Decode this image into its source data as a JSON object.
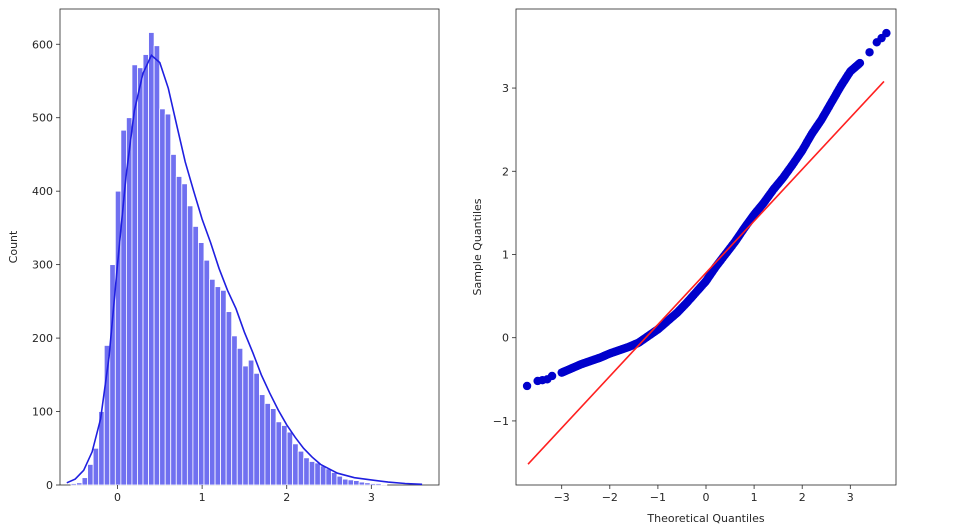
{
  "chart_data": [
    {
      "type": "bar",
      "title": "",
      "xlabel": "",
      "ylabel": "Count",
      "xlim": [
        -0.68,
        3.8
      ],
      "ylim": [
        0,
        648
      ],
      "xticks": [
        0,
        1,
        2,
        3
      ],
      "yticks": [
        0,
        100,
        200,
        300,
        400,
        500,
        600
      ],
      "bin_start": -0.55,
      "bin_width": 0.0655,
      "counts": [
        2,
        3,
        10,
        28,
        50,
        100,
        190,
        300,
        400,
        483,
        500,
        572,
        568,
        586,
        616,
        598,
        512,
        505,
        450,
        420,
        410,
        380,
        352,
        330,
        306,
        280,
        270,
        265,
        236,
        203,
        186,
        162,
        170,
        152,
        123,
        111,
        104,
        86,
        81,
        72,
        56,
        46,
        37,
        32,
        30,
        26,
        22,
        17,
        12,
        8,
        7,
        6,
        4,
        3,
        2,
        2,
        1
      ],
      "bar_color": "#7070f0",
      "kde": {
        "x": [
          -0.6,
          -0.5,
          -0.4,
          -0.3,
          -0.2,
          -0.1,
          0.0,
          0.1,
          0.2,
          0.3,
          0.4,
          0.5,
          0.6,
          0.7,
          0.8,
          0.9,
          1.0,
          1.1,
          1.2,
          1.3,
          1.4,
          1.5,
          1.6,
          1.7,
          1.8,
          1.9,
          2.0,
          2.1,
          2.2,
          2.3,
          2.4,
          2.5,
          2.6,
          2.8,
          3.0,
          3.2,
          3.4,
          3.6
        ],
        "y": [
          3,
          8,
          20,
          45,
          90,
          175,
          300,
          420,
          510,
          560,
          585,
          575,
          540,
          490,
          440,
          400,
          362,
          330,
          295,
          265,
          240,
          208,
          180,
          150,
          125,
          102,
          82,
          65,
          50,
          38,
          28,
          22,
          16,
          10,
          7,
          4,
          2,
          1
        ],
        "color": "#1f1fe0"
      }
    },
    {
      "type": "scatter",
      "title": "",
      "xlabel": "Theoretical Quantiles",
      "ylabel": "Sample Quantiles",
      "xlim": [
        -3.95,
        3.95
      ],
      "ylim": [
        -1.77,
        3.95
      ],
      "xticks": [
        -3,
        -2,
        -1,
        0,
        1,
        2,
        3
      ],
      "xtick_labels": [
        "−3",
        "−2",
        "−1",
        "0",
        "1",
        "2",
        "3"
      ],
      "yticks": [
        -1,
        0,
        1,
        2,
        3
      ],
      "ytick_labels": [
        "−1",
        "0",
        "1",
        "2",
        "3"
      ],
      "point_color": "#0000cc",
      "line_color": "#ff2020",
      "reference_line": {
        "x": [
          -3.7,
          3.7
        ],
        "y": [
          -1.52,
          3.08
        ]
      },
      "points": {
        "x": [
          -3.72,
          -3.5,
          -3.4,
          -3.3,
          -3.2,
          -3.0,
          -2.8,
          -2.6,
          -2.4,
          -2.2,
          -2.0,
          -1.8,
          -1.6,
          -1.4,
          -1.2,
          -1.0,
          -0.8,
          -0.6,
          -0.4,
          -0.2,
          0.0,
          0.2,
          0.4,
          0.6,
          0.8,
          1.0,
          1.2,
          1.4,
          1.6,
          1.8,
          2.0,
          2.2,
          2.4,
          2.6,
          2.8,
          3.0,
          3.2,
          3.4,
          3.55,
          3.65,
          3.75
        ],
        "y": [
          -0.58,
          -0.52,
          -0.51,
          -0.5,
          -0.46,
          -0.42,
          -0.37,
          -0.32,
          -0.28,
          -0.24,
          -0.19,
          -0.15,
          -0.11,
          -0.06,
          0.02,
          0.1,
          0.2,
          0.3,
          0.42,
          0.55,
          0.68,
          0.85,
          1.0,
          1.15,
          1.32,
          1.48,
          1.62,
          1.78,
          1.92,
          2.08,
          2.25,
          2.45,
          2.62,
          2.82,
          3.02,
          3.2,
          3.3,
          3.43,
          3.55,
          3.6,
          3.66
        ]
      }
    }
  ]
}
